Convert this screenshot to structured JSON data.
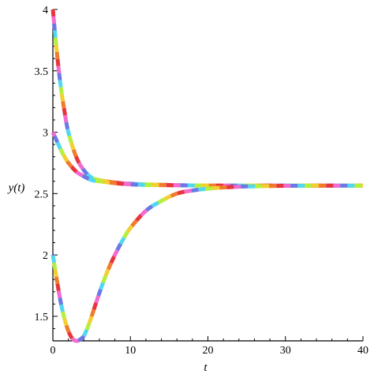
{
  "chart_data": {
    "type": "line",
    "xlabel": "t",
    "ylabel": "y(t)",
    "xlim": [
      0,
      40
    ],
    "ylim": [
      1.3,
      4.0
    ],
    "x_ticks": [
      0,
      10,
      20,
      30,
      40
    ],
    "y_ticks": [
      1.5,
      2,
      2.5,
      3,
      3.5,
      4
    ],
    "x_tick_labels": [
      "0",
      "10",
      "20",
      "30",
      "40"
    ],
    "y_tick_labels": [
      "1.5",
      "2",
      "2.5",
      "3",
      "3.5",
      "4"
    ],
    "grid": false,
    "line_style": "rainbow-striped",
    "stripe_colors": [
      "#e8343c",
      "#f26bd0",
      "#6b79e6",
      "#50d8f0",
      "#b4ef3c",
      "#f3cf32",
      "#f07b2b"
    ],
    "series": [
      {
        "x": [
          0,
          0.5,
          1,
          1.5,
          2,
          3,
          4,
          5,
          6,
          8,
          10,
          12,
          15,
          20,
          25,
          30,
          35,
          40
        ],
        "y": [
          4.0,
          3.66,
          3.38,
          3.17,
          3.0,
          2.8,
          2.69,
          2.63,
          2.61,
          2.59,
          2.58,
          2.575,
          2.57,
          2.565,
          2.565,
          2.565,
          2.565,
          2.565
        ]
      },
      {
        "x": [
          0,
          0.5,
          1,
          1.5,
          2,
          3,
          4,
          5,
          6,
          8,
          10,
          12,
          15,
          20,
          25,
          30,
          35,
          40
        ],
        "y": [
          3.0,
          2.93,
          2.86,
          2.8,
          2.75,
          2.68,
          2.64,
          2.61,
          2.6,
          2.585,
          2.575,
          2.57,
          2.568,
          2.565,
          2.565,
          2.565,
          2.565,
          2.565
        ]
      },
      {
        "x": [
          0,
          0.5,
          1,
          1.5,
          2,
          2.5,
          3,
          3.5,
          4,
          4.5,
          5,
          6,
          7,
          8,
          9,
          10,
          12,
          14,
          16,
          18,
          20,
          22,
          25,
          30,
          35,
          40
        ],
        "y": [
          2.0,
          1.8,
          1.62,
          1.48,
          1.38,
          1.32,
          1.3,
          1.31,
          1.34,
          1.41,
          1.5,
          1.69,
          1.86,
          2.0,
          2.12,
          2.22,
          2.36,
          2.44,
          2.5,
          2.525,
          2.54,
          2.55,
          2.558,
          2.563,
          2.565,
          2.565
        ]
      }
    ]
  }
}
